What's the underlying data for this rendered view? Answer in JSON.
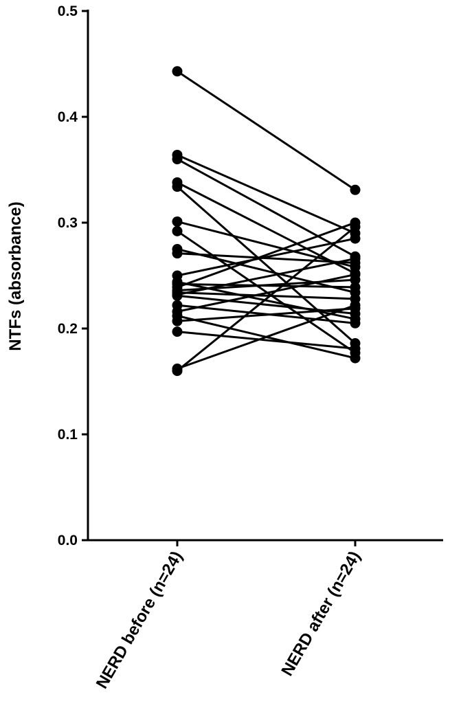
{
  "chart_data": {
    "type": "line",
    "title": "",
    "ylabel": "NTFs (absorbance)",
    "xlabel": "",
    "ylim": [
      0.0,
      0.5
    ],
    "y_ticks": [
      "0.0",
      "0.1",
      "0.2",
      "0.3",
      "0.4",
      "0.5"
    ],
    "y_tick_values": [
      0.0,
      0.1,
      0.2,
      0.3,
      0.4,
      0.5
    ],
    "categories": [
      "NERD before (n=24)",
      "NERD after (n=24)"
    ],
    "grid": false,
    "legend": "none",
    "series_color": "#000000",
    "series": [
      {
        "values": [
          0.443,
          0.331
        ]
      },
      {
        "values": [
          0.364,
          0.29
        ]
      },
      {
        "values": [
          0.36,
          0.268
        ]
      },
      {
        "values": [
          0.338,
          0.252
        ]
      },
      {
        "values": [
          0.334,
          0.186
        ]
      },
      {
        "values": [
          0.301,
          0.258
        ]
      },
      {
        "values": [
          0.292,
          0.177
        ]
      },
      {
        "values": [
          0.275,
          0.234
        ]
      },
      {
        "values": [
          0.271,
          0.262
        ]
      },
      {
        "values": [
          0.25,
          0.285
        ]
      },
      {
        "values": [
          0.244,
          0.209
        ]
      },
      {
        "values": [
          0.242,
          0.239
        ]
      },
      {
        "values": [
          0.239,
          0.3
        ]
      },
      {
        "values": [
          0.236,
          0.246
        ]
      },
      {
        "values": [
          0.234,
          0.228
        ]
      },
      {
        "values": [
          0.232,
          0.266
        ]
      },
      {
        "values": [
          0.231,
          0.214
        ]
      },
      {
        "values": [
          0.222,
          0.205
        ]
      },
      {
        "values": [
          0.216,
          0.251
        ]
      },
      {
        "values": [
          0.212,
          0.172
        ]
      },
      {
        "values": [
          0.207,
          0.219
        ]
      },
      {
        "values": [
          0.197,
          0.181
        ]
      },
      {
        "values": [
          0.162,
          0.222
        ]
      },
      {
        "values": [
          0.16,
          0.296
        ]
      }
    ]
  }
}
